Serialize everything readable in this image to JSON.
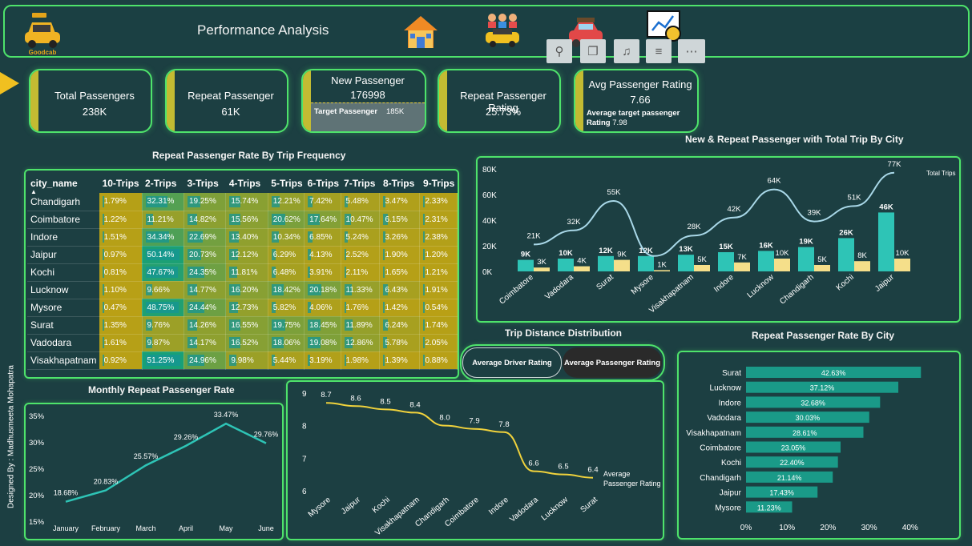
{
  "header": {
    "title": "Performance Analysis",
    "logo_text": "Goodcab",
    "designer": "Designed By : Madhusmeeta Mohapatra"
  },
  "cards": [
    {
      "label": "Total Passengers",
      "value": "238K"
    },
    {
      "label": "Repeat Passenger",
      "value": "61K"
    },
    {
      "label": "New Passenger",
      "value": "176998",
      "target_label": "Target Passenger",
      "target_value": "185K"
    },
    {
      "label": "Repeat Passenger Rating",
      "value": "25.73%"
    },
    {
      "label": "Avg Passenger Rating",
      "value": "7.66",
      "sub_label": "Average target passenger Rating",
      "sub_value": "7.98"
    }
  ],
  "matrix": {
    "title": "Repeat Passenger Rate By Trip Frequency",
    "columns": [
      "city_name",
      "10-Trips",
      "2-Trips",
      "3-Trips",
      "4-Trips",
      "5-Trips",
      "6-Trips",
      "7-Trips",
      "8-Trips",
      "9-Trips"
    ],
    "rows": [
      {
        "city": "Chandigarh",
        "values": [
          "1.79%",
          "32.31%",
          "19.25%",
          "15.74%",
          "12.21%",
          "7.42%",
          "5.48%",
          "3.47%",
          "2.33%"
        ]
      },
      {
        "city": "Coimbatore",
        "values": [
          "1.22%",
          "11.21%",
          "14.82%",
          "15.56%",
          "20.62%",
          "17.64%",
          "10.47%",
          "6.15%",
          "2.31%"
        ]
      },
      {
        "city": "Indore",
        "values": [
          "1.51%",
          "34.34%",
          "22.69%",
          "13.40%",
          "10.34%",
          "6.85%",
          "5.24%",
          "3.26%",
          "2.38%"
        ]
      },
      {
        "city": "Jaipur",
        "values": [
          "0.97%",
          "50.14%",
          "20.73%",
          "12.12%",
          "6.29%",
          "4.13%",
          "2.52%",
          "1.90%",
          "1.20%"
        ]
      },
      {
        "city": "Kochi",
        "values": [
          "0.81%",
          "47.67%",
          "24.35%",
          "11.81%",
          "6.48%",
          "3.91%",
          "2.11%",
          "1.65%",
          "1.21%"
        ]
      },
      {
        "city": "Lucknow",
        "values": [
          "1.10%",
          "9.66%",
          "14.77%",
          "16.20%",
          "18.42%",
          "20.18%",
          "11.33%",
          "6.43%",
          "1.91%"
        ]
      },
      {
        "city": "Mysore",
        "values": [
          "0.47%",
          "48.75%",
          "24.44%",
          "12.73%",
          "5.82%",
          "4.06%",
          "1.76%",
          "1.42%",
          "0.54%"
        ]
      },
      {
        "city": "Surat",
        "values": [
          "1.35%",
          "9.76%",
          "14.26%",
          "16.55%",
          "19.75%",
          "18.45%",
          "11.89%",
          "6.24%",
          "1.74%"
        ]
      },
      {
        "city": "Vadodara",
        "values": [
          "1.61%",
          "9.87%",
          "14.17%",
          "16.52%",
          "18.06%",
          "19.08%",
          "12.86%",
          "5.78%",
          "2.05%"
        ]
      },
      {
        "city": "Visakhapatnam",
        "values": [
          "0.92%",
          "51.25%",
          "24.96%",
          "9.98%",
          "5.44%",
          "3.19%",
          "1.98%",
          "1.39%",
          "0.88%"
        ]
      }
    ]
  },
  "tabs": {
    "driver": "Average Driver Rating",
    "passenger": "Average Passenger Rating"
  },
  "chart_titles": {
    "trip_dist": "Trip Distance Distribution"
  },
  "chart_data": [
    {
      "type": "bar",
      "title": "New & Repeat Passenger with Total Trip  By City",
      "categories": [
        "Coimbatore",
        "Vadodara",
        "Surat",
        "Mysore",
        "Visakhapatnam",
        "Indore",
        "Lucknow",
        "Chandigarh",
        "Kochi",
        "Jaipur"
      ],
      "series": [
        {
          "name": "new",
          "values": [
            9,
            10,
            12,
            12,
            13,
            15,
            16,
            19,
            26,
            46
          ],
          "labels": [
            "9K",
            "10K",
            "12K",
            "12K",
            "13K",
            "15K",
            "16K",
            "19K",
            "26K",
            "46K"
          ],
          "color": "#2ec4b6"
        },
        {
          "name": "repeat",
          "values": [
            3,
            4,
            9,
            1,
            5,
            7,
            10,
            5,
            8,
            10
          ],
          "labels": [
            "3K",
            "4K",
            "9K",
            "1K",
            "5K",
            "7K",
            "10K",
            "5K",
            "8K",
            "10K"
          ],
          "color": "#f5df8a"
        },
        {
          "name": "Total Trips",
          "values": [
            21,
            32,
            55,
            12,
            28,
            42,
            64,
            39,
            51,
            77
          ],
          "labels": [
            "21K",
            "32K",
            "55K",
            "",
            "28K",
            "42K",
            "64K",
            "39K",
            "51K",
            "77K"
          ],
          "color": "#a9d8e8"
        }
      ],
      "y_ticks": [
        "0K",
        "20K",
        "40K",
        "60K",
        "80K"
      ],
      "ylim": [
        0,
        80
      ]
    },
    {
      "type": "line",
      "title": "Monthly Repeat Passenger Rate",
      "categories": [
        "January",
        "February",
        "March",
        "April",
        "May",
        "June"
      ],
      "values": [
        18.68,
        20.83,
        25.57,
        29.26,
        33.47,
        29.76
      ],
      "labels": [
        "18.68%",
        "20.83%",
        "25.57%",
        "29.26%",
        "33.47%",
        "29.76%"
      ],
      "y_ticks": [
        "15%",
        "20%",
        "25%",
        "30%",
        "35%"
      ],
      "ylim": [
        15,
        35
      ],
      "color": "#2ec4b6"
    },
    {
      "type": "line",
      "series_label": "Average Passenger Rating",
      "categories": [
        "Mysore",
        "Jaipur",
        "Kochi",
        "Visakhapatnam",
        "Chandigarh",
        "Coimbatore",
        "Indore",
        "Vadodara",
        "Lucknow",
        "Surat"
      ],
      "values": [
        8.7,
        8.6,
        8.5,
        8.4,
        8.0,
        7.9,
        7.8,
        6.6,
        6.5,
        6.4
      ],
      "labels": [
        "8.7",
        "8.6",
        "8.5",
        "8.4",
        "8.0",
        "7.9",
        "7.8",
        "6.6",
        "6.5",
        "6.4"
      ],
      "y_ticks": [
        "6",
        "7",
        "8",
        "9"
      ],
      "ylim": [
        6,
        9
      ],
      "color": "#f0d23c"
    },
    {
      "type": "bar",
      "title": "Repeat Passenger Rate By City",
      "categories": [
        "Surat",
        "Lucknow",
        "Indore",
        "Vadodara",
        "Visakhapatnam",
        "Coimbatore",
        "Kochi",
        "Chandigarh",
        "Jaipur",
        "Mysore"
      ],
      "values": [
        42.63,
        37.12,
        32.68,
        30.03,
        28.61,
        23.05,
        22.4,
        21.14,
        17.43,
        11.23
      ],
      "labels": [
        "42.63%",
        "37.12%",
        "32.68%",
        "30.03%",
        "28.61%",
        "23.05%",
        "22.40%",
        "21.14%",
        "17.43%",
        "11.23%"
      ],
      "x_ticks": [
        "0%",
        "10%",
        "20%",
        "30%",
        "40%"
      ],
      "xlim": [
        0,
        45
      ],
      "color": "#1a9a88"
    }
  ]
}
